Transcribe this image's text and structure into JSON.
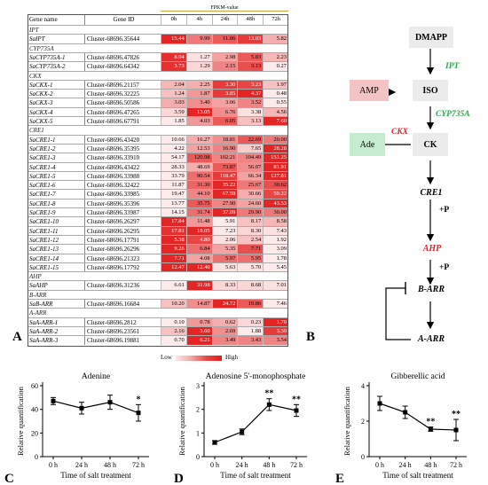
{
  "heatmap": {
    "col_header_top": "FPKM-value",
    "col_name": "Gene name",
    "col_id": "Gene ID",
    "times": [
      "0h",
      "4h",
      "24h",
      "48h",
      "72h"
    ],
    "rows": [
      {
        "type": "group",
        "name": "IPT"
      },
      {
        "type": "gene",
        "name": "SaIPT",
        "id": "Cluster-68696.35644",
        "v": [
          "15.44",
          "9.99",
          "11.06",
          "13.03",
          "5.82"
        ]
      },
      {
        "type": "group",
        "name": "CYP735A"
      },
      {
        "type": "gene",
        "name": "SaCYP735A-1",
        "id": "Cluster-68696.47826",
        "v": [
          "8.04",
          "1.27",
          "2.98",
          "5.83",
          "2.23"
        ]
      },
      {
        "type": "gene",
        "name": "SaCYP735A-2",
        "id": "Cluster-68696.64342",
        "v": [
          "3.73",
          "1.29",
          "2.15",
          "3.13",
          "0.27"
        ]
      },
      {
        "type": "group",
        "name": "CKX"
      },
      {
        "type": "gene",
        "name": "SaCKX-1",
        "id": "Cluster-68696.21157",
        "v": [
          "2.04",
          "2.25",
          "3.30",
          "3.23",
          "1.97"
        ]
      },
      {
        "type": "gene",
        "name": "SaCKX-2",
        "id": "Cluster-68696.32225",
        "v": [
          "1.24",
          "1.87",
          "3.85",
          "4.37",
          "0.48"
        ]
      },
      {
        "type": "gene",
        "name": "SaCKX-3",
        "id": "Cluster-68696.50586",
        "v": [
          "3.03",
          "3.40",
          "3.06",
          "3.52",
          "0.55"
        ]
      },
      {
        "type": "gene",
        "name": "SaCKX-4",
        "id": "Cluster-68696.47265",
        "v": [
          "3.59",
          "13.05",
          "6.76",
          "3.38",
          "4.56"
        ]
      },
      {
        "type": "gene",
        "name": "SaCKX-5",
        "id": "Cluster-68696.67791",
        "v": [
          "1.85",
          "4.03",
          "6.05",
          "3.13",
          "7.60"
        ]
      },
      {
        "type": "group",
        "name": "CRE1"
      },
      {
        "type": "gene",
        "name": "SaCRE1-1",
        "id": "Cluster-68696.43420",
        "v": [
          "10.66",
          "16.27",
          "18.81",
          "22.69",
          "20.00"
        ]
      },
      {
        "type": "gene",
        "name": "SaCRE1-2",
        "id": "Cluster-68696.35395",
        "v": [
          "4.22",
          "12.53",
          "16.90",
          "7.65",
          "28.28"
        ]
      },
      {
        "type": "gene",
        "name": "SaCRE1-3",
        "id": "Cluster-68696.33910",
        "v": [
          "54.17",
          "120.98",
          "102.21",
          "104.49",
          "151.25"
        ]
      },
      {
        "type": "gene",
        "name": "SaCRE1-4",
        "id": "Cluster-68696.43422",
        "v": [
          "28.33",
          "48.69",
          "73.87",
          "56.07",
          "81.91"
        ]
      },
      {
        "type": "gene",
        "name": "SaCRE1-5",
        "id": "Cluster-68696.33988",
        "v": [
          "33.79",
          "90.54",
          "118.47",
          "66.34",
          "127.81"
        ]
      },
      {
        "type": "gene",
        "name": "SaCRE1-6",
        "id": "Cluster-68696.32422",
        "v": [
          "11.87",
          "31.30",
          "35.22",
          "25.67",
          "30.62"
        ]
      },
      {
        "type": "gene",
        "name": "SaCRE1-7",
        "id": "Cluster-68696.33985",
        "v": [
          "19.47",
          "44.10",
          "67.59",
          "30.66",
          "59.22"
        ]
      },
      {
        "type": "gene",
        "name": "SaCRE1-8",
        "id": "Cluster-68696.35396",
        "v": [
          "13.77",
          "35.75",
          "27.90",
          "24.60",
          "43.53"
        ]
      },
      {
        "type": "gene",
        "name": "SaCRE1-9",
        "id": "Cluster-68696.33987",
        "v": [
          "14.15",
          "31.74",
          "37.09",
          "29.90",
          "30.00"
        ]
      },
      {
        "type": "gene",
        "name": "SaCRE1-10",
        "id": "Cluster-68696.26297",
        "v": [
          "17.84",
          "11.48",
          "5.91",
          "8.17",
          "8.58"
        ]
      },
      {
        "type": "gene",
        "name": "SaCRE1-11",
        "id": "Cluster-68696.26295",
        "v": [
          "17.81",
          "18.05",
          "7.23",
          "8.30",
          "7.43"
        ]
      },
      {
        "type": "gene",
        "name": "SaCRE1-12",
        "id": "Cluster-68696.17791",
        "v": [
          "5.38",
          "4.80",
          "2.06",
          "2.54",
          "1.92"
        ]
      },
      {
        "type": "gene",
        "name": "SaCRE1-13",
        "id": "Cluster-68696.26296",
        "v": [
          "9.26",
          "6.84",
          "5.35",
          "7.71",
          "3.09"
        ]
      },
      {
        "type": "gene",
        "name": "SaCRE1-14",
        "id": "Cluster-68696.21323",
        "v": [
          "7.71",
          "4.08",
          "5.97",
          "5.95",
          "1.78"
        ]
      },
      {
        "type": "gene",
        "name": "SaCRE1-15",
        "id": "Cluster-68696.17792",
        "v": [
          "12.47",
          "12.40",
          "5.63",
          "5.70",
          "5.45"
        ]
      },
      {
        "type": "group",
        "name": "AHP"
      },
      {
        "type": "gene",
        "name": "SaAHP",
        "id": "Cluster-68696.31236",
        "v": [
          "6.61",
          "31.98",
          "8.33",
          "8.68",
          "7.01"
        ]
      },
      {
        "type": "group",
        "name": "B-ARR"
      },
      {
        "type": "gene",
        "name": "SaB-ARR",
        "id": "Cluster-68696.16684",
        "v": [
          "10.20",
          "14.87",
          "24.72",
          "19.86",
          "7.46"
        ]
      },
      {
        "type": "group",
        "name": "A-ARR"
      },
      {
        "type": "gene",
        "name": "SaA-ARR-1",
        "id": "Cluster-68696.2812",
        "v": [
          "0.10",
          "0.78",
          "0.62",
          "0.23",
          "1.79"
        ]
      },
      {
        "type": "gene",
        "name": "SaA-ARR-2",
        "id": "Cluster-68696.23561",
        "v": [
          "2.16",
          "3.60",
          "2.69",
          "1.88",
          "3.39"
        ]
      },
      {
        "type": "gene",
        "name": "SaA-ARR-3",
        "id": "Cluster-68696.19881",
        "v": [
          "0.70",
          "6.21",
          "3.49",
          "3.43",
          "3.54"
        ]
      }
    ],
    "shade": [
      [],
      [
        0.95,
        0.55,
        0.7,
        0.85,
        0.3
      ],
      [],
      [
        0.9,
        0.05,
        0.35,
        0.7,
        0.25
      ],
      [
        0.9,
        0.1,
        0.5,
        0.75,
        0.0
      ],
      [],
      [
        0.25,
        0.3,
        0.85,
        0.8,
        0.2
      ],
      [
        0.2,
        0.4,
        0.85,
        0.95,
        0.0
      ],
      [
        0.3,
        0.45,
        0.35,
        0.5,
        0.0
      ],
      [
        0.1,
        0.95,
        0.45,
        0.05,
        0.25
      ],
      [
        0.0,
        0.4,
        0.7,
        0.2,
        0.95
      ],
      [],
      [
        0.0,
        0.3,
        0.45,
        0.7,
        0.55
      ],
      [
        0.0,
        0.35,
        0.5,
        0.15,
        0.95
      ],
      [
        0.0,
        0.7,
        0.5,
        0.5,
        0.95
      ],
      [
        0.0,
        0.3,
        0.7,
        0.45,
        0.95
      ],
      [
        0.0,
        0.6,
        0.85,
        0.35,
        0.95
      ],
      [
        0.0,
        0.65,
        0.95,
        0.55,
        0.75
      ],
      [
        0.0,
        0.5,
        0.95,
        0.3,
        0.8
      ],
      [
        0.0,
        0.7,
        0.5,
        0.35,
        0.95
      ],
      [
        0.0,
        0.6,
        0.95,
        0.55,
        0.55
      ],
      [
        0.95,
        0.4,
        0.0,
        0.2,
        0.25
      ],
      [
        0.9,
        0.95,
        0.0,
        0.1,
        0.05
      ],
      [
        0.95,
        0.8,
        0.05,
        0.2,
        0.0
      ],
      [
        0.95,
        0.6,
        0.35,
        0.75,
        0.0
      ],
      [
        0.95,
        0.35,
        0.6,
        0.6,
        0.0
      ],
      [
        0.95,
        0.95,
        0.05,
        0.05,
        0.0
      ],
      [],
      [
        0.0,
        0.95,
        0.1,
        0.1,
        0.05
      ],
      [],
      [
        0.2,
        0.45,
        0.95,
        0.7,
        0.0
      ],
      [],
      [
        0.0,
        0.4,
        0.3,
        0.1,
        0.95
      ],
      [
        0.2,
        0.95,
        0.45,
        0.0,
        0.85
      ],
      [
        0.0,
        0.95,
        0.5,
        0.5,
        0.5
      ]
    ],
    "legend_low": "Low",
    "legend_high": "High",
    "panel_label": "A"
  },
  "pathway": {
    "panel_label": "B",
    "nodes": {
      "dmapp": "DMAPP",
      "iso": "ISO",
      "amp": "AMP",
      "ck": "CK",
      "ade": "Ade",
      "cre1": "CRE1",
      "ahp": "AHP",
      "barr": "B-ARR",
      "aarr": "A-ARR"
    },
    "enzymes": {
      "ipt": "IPT",
      "cyp": "CYP735A",
      "ckx": "CKX"
    },
    "plus_p_1": "+P",
    "plus_p_2": "+P"
  },
  "charts_text": {
    "ylabel": "Relative quantification",
    "xlabel": "Time of salt treatment",
    "sig": "*",
    "sig2": "**"
  },
  "chart_data": [
    {
      "type": "line",
      "panel": "C",
      "title": "Adenine",
      "categories": [
        "0 h",
        "24 h",
        "48 h",
        "72 h"
      ],
      "values": [
        47,
        41,
        46,
        37
      ],
      "errors": [
        3,
        5,
        6,
        7
      ],
      "ylim": [
        0,
        60
      ],
      "yticks": [
        0,
        20,
        40,
        60
      ],
      "significance": [
        "",
        "",
        "",
        "*"
      ],
      "xlabel": "Time of salt treatment",
      "ylabel": "Relative quantification"
    },
    {
      "type": "line",
      "panel": "D",
      "title": "Adenosine 5'-monophosphate",
      "categories": [
        "0 h",
        "24 h",
        "48 h",
        "72 h"
      ],
      "values": [
        0.6,
        1.05,
        2.2,
        1.95
      ],
      "errors": [
        0.08,
        0.12,
        0.25,
        0.25
      ],
      "ylim": [
        0,
        3
      ],
      "yticks": [
        0,
        1,
        2,
        3
      ],
      "significance": [
        "",
        "",
        "**",
        "**"
      ],
      "xlabel": "Time of salt treatment",
      "ylabel": "Relative quantification"
    },
    {
      "type": "line",
      "panel": "E",
      "title": "Gibberellic acid",
      "categories": [
        "0 h",
        "24 h",
        "48 h",
        "72 h"
      ],
      "values": [
        3.0,
        2.5,
        1.55,
        1.5
      ],
      "errors": [
        0.4,
        0.35,
        0.12,
        0.6
      ],
      "ylim": [
        0,
        4
      ],
      "yticks": [
        0,
        2,
        4
      ],
      "significance": [
        "",
        "",
        "**",
        "**"
      ],
      "xlabel": "Time of salt treatment",
      "ylabel": "Relative quantification"
    }
  ]
}
